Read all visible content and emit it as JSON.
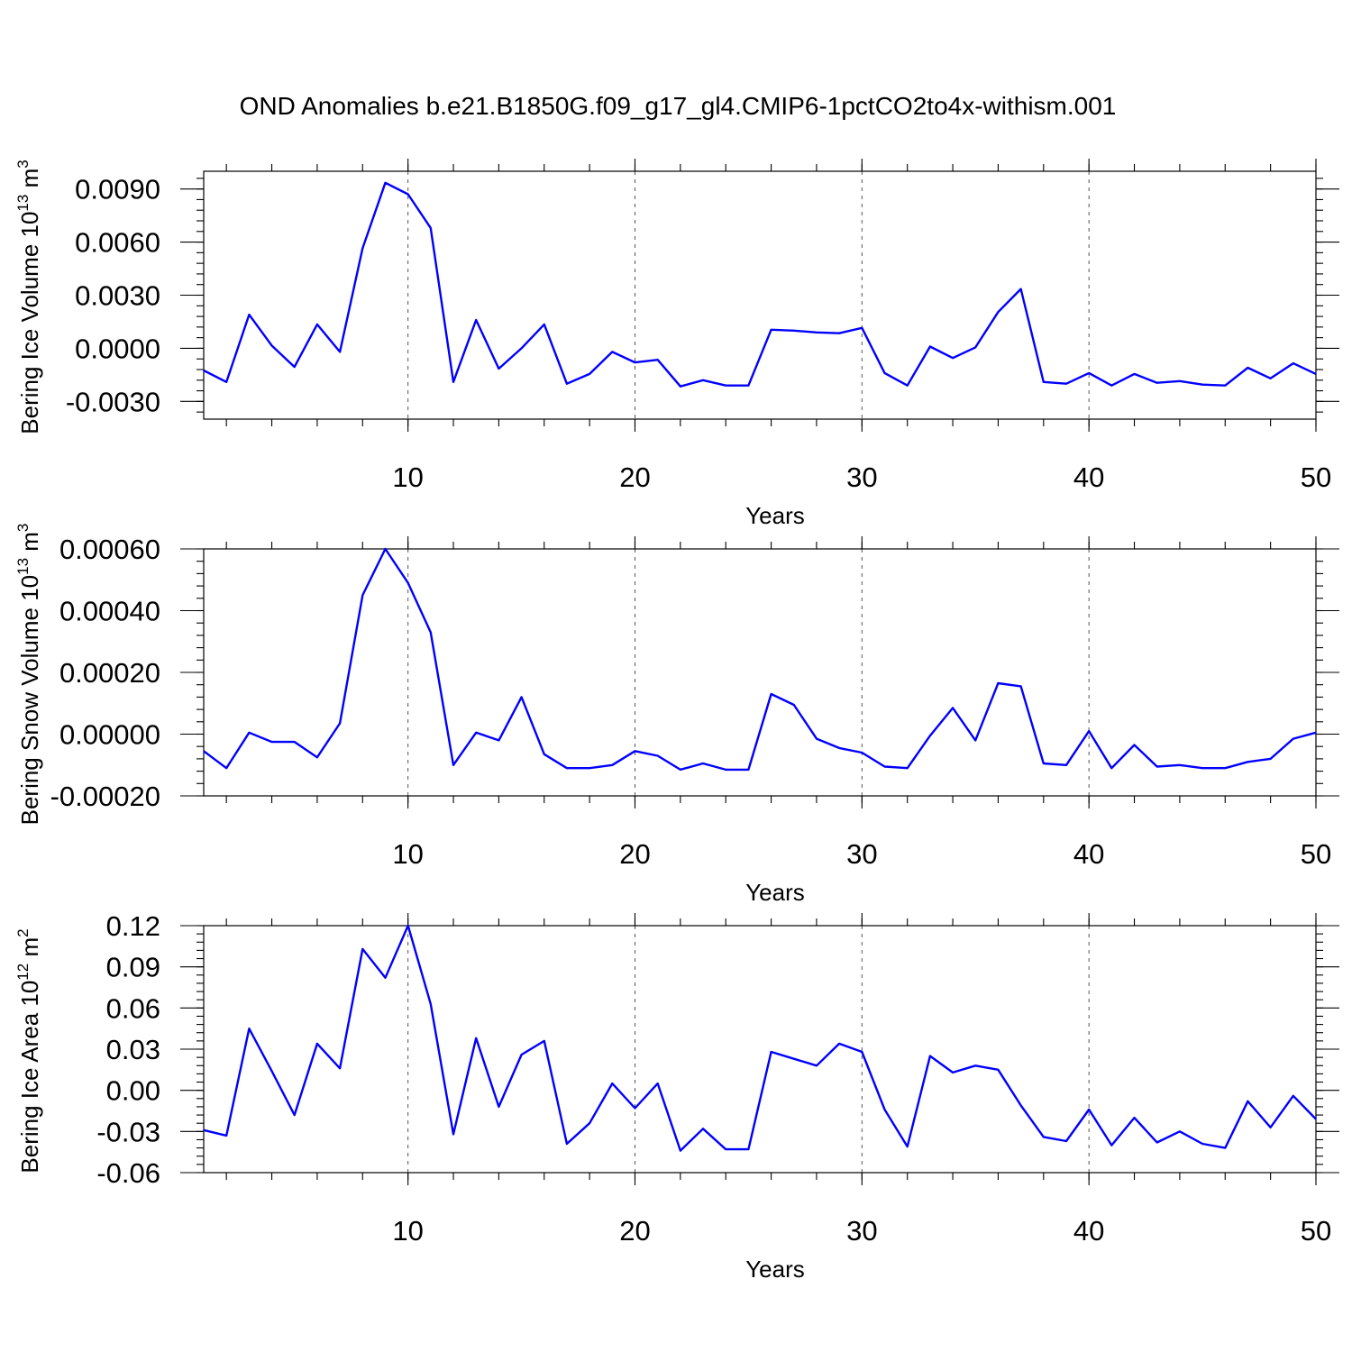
{
  "title": "OND Anomalies b.e21.B1850G.f09_g17_gl4.CMIP6-1pctCO2to4x-withism.001",
  "colors": {
    "series": "#0000ff",
    "axes": "#000000",
    "grid": "#555555"
  },
  "chart_data": [
    {
      "type": "line",
      "ylabel": {
        "base": "Bering Ice Volume 10",
        "exp": "13",
        "unit": " m",
        "unit_exp": "3"
      },
      "xlabel": "Years",
      "xlim": [
        1,
        50
      ],
      "ylim": [
        -0.004,
        0.01
      ],
      "xticks": [
        "10",
        "20",
        "30",
        "40",
        "50"
      ],
      "yticks": [
        {
          "v": 0.009,
          "label": "0.0090"
        },
        {
          "v": 0.006,
          "label": "0.0060"
        },
        {
          "v": 0.003,
          "label": "0.0030"
        },
        {
          "v": 0.0,
          "label": "0.0000"
        },
        {
          "v": -0.003,
          "label": "-0.0030"
        }
      ],
      "grid": "vertical dashed at major x ticks",
      "x": [
        1,
        2,
        3,
        4,
        5,
        6,
        7,
        8,
        9,
        10,
        11,
        12,
        13,
        14,
        15,
        16,
        17,
        18,
        19,
        20,
        21,
        22,
        23,
        24,
        25,
        26,
        27,
        28,
        29,
        30,
        31,
        32,
        33,
        34,
        35,
        36,
        37,
        38,
        39,
        40,
        41,
        42,
        43,
        44,
        45,
        46,
        47,
        48,
        49,
        50
      ],
      "values": [
        -0.00125,
        -0.0019,
        0.0019,
        0.00015,
        -0.00105,
        0.00135,
        -0.0002,
        0.00565,
        0.00935,
        0.0087,
        0.0068,
        -0.0019,
        0.0016,
        -0.00115,
        0.0,
        0.00135,
        -0.002,
        -0.00145,
        -0.0002,
        -0.0008,
        -0.00065,
        -0.00215,
        -0.0018,
        -0.0021,
        -0.0021,
        0.00105,
        0.001,
        0.0009,
        0.00085,
        0.00115,
        -0.0014,
        -0.0021,
        0.0001,
        -0.00055,
        5e-05,
        0.00205,
        0.00335,
        -0.0019,
        -0.002,
        -0.0014,
        -0.0021,
        -0.00145,
        -0.00195,
        -0.00185,
        -0.00205,
        -0.0021,
        -0.0011,
        -0.0017,
        -0.00085,
        -0.00145
      ]
    },
    {
      "type": "line",
      "ylabel": {
        "base": "Bering Snow Volume 10",
        "exp": "13",
        "unit": " m",
        "unit_exp": "3"
      },
      "xlabel": "Years",
      "xlim": [
        1,
        50
      ],
      "ylim": [
        -0.0002,
        0.0006
      ],
      "xticks": [
        "10",
        "20",
        "30",
        "40",
        "50"
      ],
      "yticks": [
        {
          "v": 0.0006,
          "label": "0.00060"
        },
        {
          "v": 0.0004,
          "label": "0.00040"
        },
        {
          "v": 0.0002,
          "label": "0.00020"
        },
        {
          "v": 0.0,
          "label": "0.00000"
        },
        {
          "v": -0.0002,
          "label": "-0.00020"
        }
      ],
      "grid": "vertical dashed at major x ticks",
      "x": [
        1,
        2,
        3,
        4,
        5,
        6,
        7,
        8,
        9,
        10,
        11,
        12,
        13,
        14,
        15,
        16,
        17,
        18,
        19,
        20,
        21,
        22,
        23,
        24,
        25,
        26,
        27,
        28,
        29,
        30,
        31,
        32,
        33,
        34,
        35,
        36,
        37,
        38,
        39,
        40,
        41,
        42,
        43,
        44,
        45,
        46,
        47,
        48,
        49,
        50
      ],
      "values": [
        -5.5e-05,
        -0.00011,
        5e-06,
        -2.5e-05,
        -2.5e-05,
        -7.5e-05,
        3.5e-05,
        0.00045,
        0.0006,
        0.00049,
        0.00033,
        -0.0001,
        5e-06,
        -2e-05,
        0.00012,
        -6.5e-05,
        -0.00011,
        -0.00011,
        -0.0001,
        -5.5e-05,
        -7e-05,
        -0.000115,
        -9.5e-05,
        -0.000115,
        -0.000115,
        0.00013,
        9.5e-05,
        -1.5e-05,
        -4.5e-05,
        -6e-05,
        -0.000105,
        -0.00011,
        -5e-06,
        8.5e-05,
        -2e-05,
        0.000165,
        0.000155,
        -9.5e-05,
        -0.0001,
        1e-05,
        -0.00011,
        -3.5e-05,
        -0.000105,
        -0.0001,
        -0.00011,
        -0.00011,
        -9e-05,
        -8e-05,
        -1.5e-05,
        5e-06
      ]
    },
    {
      "type": "line",
      "ylabel": {
        "base": "Bering Ice Area 10",
        "exp": "12",
        "unit": " m",
        "unit_exp": "2"
      },
      "xlabel": "Years",
      "xlim": [
        1,
        50
      ],
      "ylim": [
        -0.06,
        0.12
      ],
      "xticks": [
        "10",
        "20",
        "30",
        "40",
        "50"
      ],
      "yticks": [
        {
          "v": 0.12,
          "label": "0.12"
        },
        {
          "v": 0.09,
          "label": "0.09"
        },
        {
          "v": 0.06,
          "label": "0.06"
        },
        {
          "v": 0.03,
          "label": "0.03"
        },
        {
          "v": 0.0,
          "label": "0.00"
        },
        {
          "v": -0.03,
          "label": "-0.03"
        },
        {
          "v": -0.06,
          "label": "-0.06"
        }
      ],
      "grid": "vertical dashed at major x ticks",
      "x": [
        1,
        2,
        3,
        4,
        5,
        6,
        7,
        8,
        9,
        10,
        11,
        12,
        13,
        14,
        15,
        16,
        17,
        18,
        19,
        20,
        21,
        22,
        23,
        24,
        25,
        26,
        27,
        28,
        29,
        30,
        31,
        32,
        33,
        34,
        35,
        36,
        37,
        38,
        39,
        40,
        41,
        42,
        43,
        44,
        45,
        46,
        47,
        48,
        49,
        50
      ],
      "values": [
        -0.029,
        -0.033,
        0.045,
        0.014,
        -0.018,
        0.034,
        0.016,
        0.103,
        0.082,
        0.12,
        0.063,
        -0.032,
        0.038,
        -0.012,
        0.026,
        0.036,
        -0.039,
        -0.024,
        0.005,
        -0.013,
        0.005,
        -0.044,
        -0.028,
        -0.043,
        -0.043,
        0.028,
        0.023,
        0.018,
        0.034,
        0.028,
        -0.014,
        -0.041,
        0.025,
        0.013,
        0.018,
        0.015,
        -0.011,
        -0.034,
        -0.037,
        -0.014,
        -0.04,
        -0.02,
        -0.038,
        -0.03,
        -0.039,
        -0.042,
        -0.008,
        -0.027,
        -0.004,
        -0.021
      ]
    }
  ]
}
